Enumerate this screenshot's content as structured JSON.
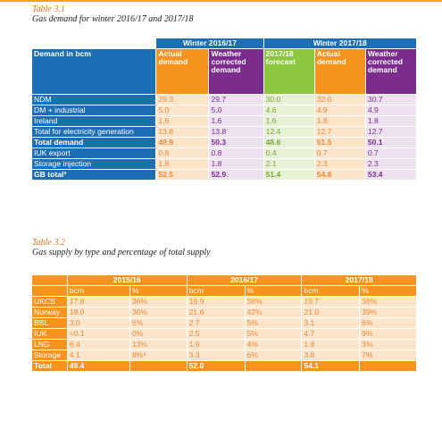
{
  "table1": {
    "caption_num": "Table 3.1",
    "caption_title": "Gas demand for winter 2016/17 and 2017/18",
    "group_headers": [
      "Winter 2016/17",
      "Winter 2017/18"
    ],
    "row_header": "Demand in bcm",
    "col_headers": [
      "Actual demand",
      "Weather corrected demand",
      "2017/18 forecast",
      "Actual demand",
      "Weather corrected demand"
    ],
    "rows": [
      {
        "label": "NDM",
        "values": [
          "29.3",
          "29.7",
          "30.0",
          "32.0",
          "30.7"
        ]
      },
      {
        "label": "DM + industrial",
        "values": [
          "5.0",
          "5.0",
          "4.6",
          "4.9",
          "4.9"
        ]
      },
      {
        "label": "Ireland",
        "values": [
          "1.6",
          "1.6",
          "1.6",
          "1.8",
          "1.8"
        ]
      },
      {
        "label": "Total for electricity generation",
        "values": [
          "13.8",
          "13.8",
          "12.4",
          "12.7",
          "12.7"
        ]
      },
      {
        "label": "Total demand",
        "values": [
          "49.9",
          "50.3",
          "48.6",
          "51.5",
          "50.1"
        ],
        "total": true
      },
      {
        "label": "IUK export",
        "values": [
          "0.8",
          "0.8",
          "0.4",
          "0.7",
          "0.7"
        ]
      },
      {
        "label": "Storage injection",
        "values": [
          "1.8",
          "1.8",
          "2.1",
          "2.3",
          "2.3"
        ]
      },
      {
        "label": "GB total³",
        "values": [
          "52.5",
          "52.9",
          "51.4",
          "54.8",
          "53.4"
        ],
        "total": true
      }
    ],
    "colors": {
      "blue": "#1d6fb5",
      "orange": "#f7941d",
      "green": "#8dc63f",
      "purple": "#7b2d8e"
    }
  },
  "table2": {
    "caption_num": "Table 3.2",
    "caption_title": "Gas supply by type and percentage of total supply",
    "years": [
      "2015/16",
      "2016/17",
      "2017/18"
    ],
    "sub_headers": [
      "bcm",
      "%"
    ],
    "rows": [
      {
        "label": "UKCS",
        "values": [
          "17.8",
          "36%",
          "19.9",
          "38%",
          "19.7",
          "36%"
        ]
      },
      {
        "label": "Norway",
        "values": [
          "18.0",
          "36%",
          "21.6",
          "42%",
          "21.0",
          "39%"
        ]
      },
      {
        "label": "BBL",
        "values": [
          "3.0",
          "6%",
          "2.7",
          "5%",
          "3.1",
          "6%"
        ]
      },
      {
        "label": "IUK",
        "values": [
          "<0.1",
          "0%",
          "2.5",
          "5%",
          "4.7",
          "9%"
        ]
      },
      {
        "label": "LNG",
        "values": [
          "6.4",
          "13%",
          "1.9",
          "4%",
          "1.8",
          "3%"
        ]
      },
      {
        "label": "Storage",
        "values": [
          "4.1",
          "8%⁴",
          "3.3",
          "6%",
          "3.8",
          "7%"
        ]
      }
    ],
    "total": {
      "label": "Total",
      "values": [
        "49.4",
        "52.0",
        "54.1"
      ]
    }
  }
}
